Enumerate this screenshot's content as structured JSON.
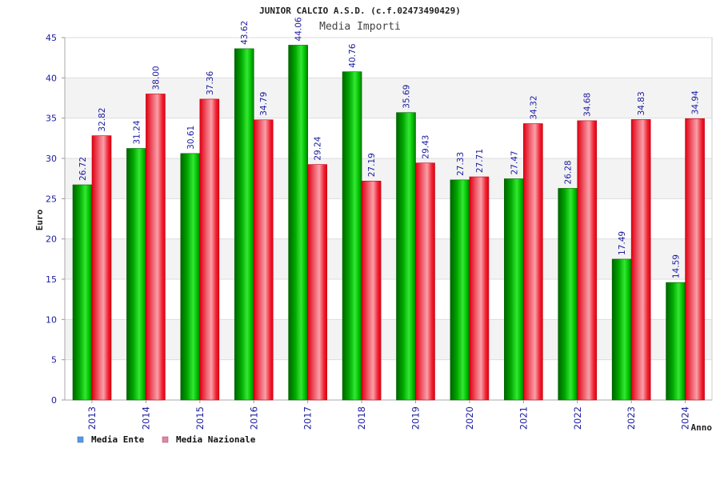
{
  "chart_data": {
    "type": "bar",
    "title": "JUNIOR CALCIO A.S.D. (c.f.02473490429)",
    "subtitle": "Media Importi",
    "ylabel": "Euro",
    "xlabel": "Anno",
    "ylim": [
      0,
      45
    ],
    "yticks": [
      0,
      5,
      10,
      15,
      20,
      25,
      30,
      35,
      40,
      45
    ],
    "categories": [
      "2013",
      "2014",
      "2015",
      "2016",
      "2017",
      "2018",
      "2019",
      "2020",
      "2021",
      "2022",
      "2023",
      "2024"
    ],
    "series": [
      {
        "name": "Media Ente",
        "color": "#00b000",
        "legend_color": "#5599ee",
        "values": [
          26.72,
          31.24,
          30.61,
          43.62,
          44.06,
          40.76,
          35.69,
          27.33,
          27.47,
          26.28,
          17.49,
          14.59
        ],
        "labels": [
          "26.72",
          "31.24",
          "30.61",
          "43.62",
          "44.06",
          "40.76",
          "35.69",
          "27.33",
          "27.47",
          "26.28",
          "17.49",
          "14.59"
        ]
      },
      {
        "name": "Media Nazionale",
        "color": "#ee1111",
        "legend_color": "#dd88aa",
        "values": [
          32.82,
          38.0,
          37.36,
          34.79,
          29.24,
          27.19,
          29.43,
          27.71,
          34.32,
          34.68,
          34.83,
          34.94
        ],
        "labels": [
          "32.82",
          "38.00",
          "37.36",
          "34.79",
          "29.24",
          "27.19",
          "29.43",
          "27.71",
          "34.32",
          "34.68",
          "34.83",
          "34.94"
        ]
      }
    ],
    "grid": true,
    "legend_position": "bottom-left"
  }
}
